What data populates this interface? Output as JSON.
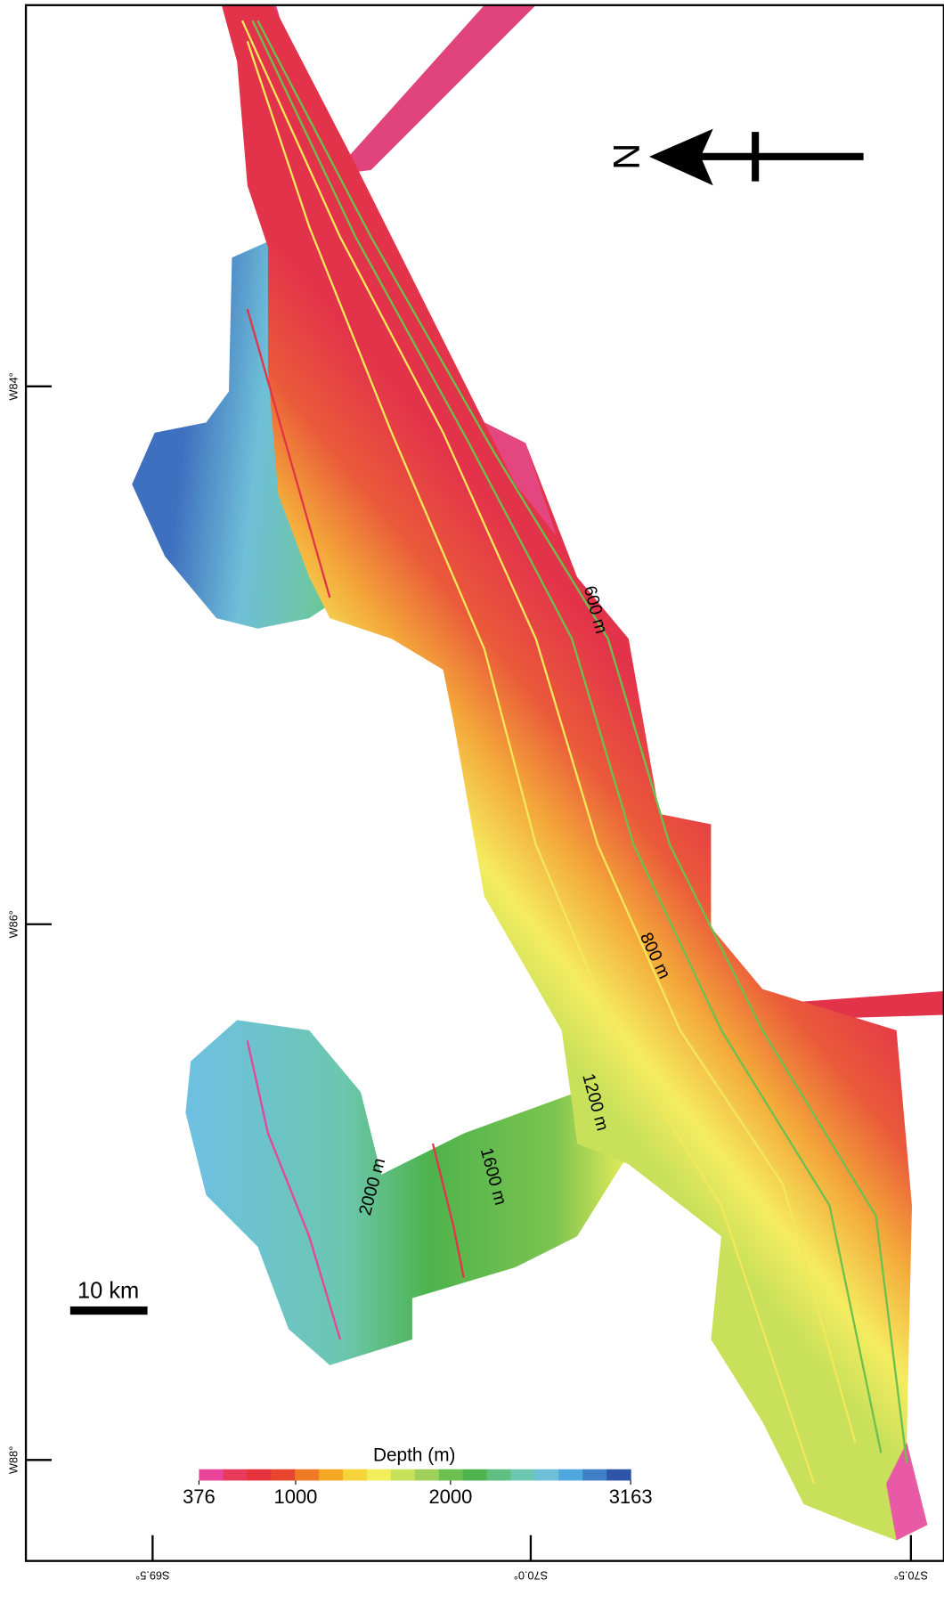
{
  "map": {
    "north_label": "N",
    "scale_bar": "10 km",
    "left_axis": [
      "W84°",
      "W86°",
      "W88°"
    ],
    "bottom_axis": [
      "S69.5°",
      "S70.0°",
      "S70.5°"
    ],
    "contour_labels": [
      "600 m",
      "800 m",
      "1200 m",
      "1600 m",
      "2000 m"
    ],
    "colorbar": {
      "title": "Depth (m)",
      "min": 376,
      "max": 3163,
      "ticks": [
        376,
        1000,
        2000,
        3163
      ],
      "colors": [
        "#e8449a",
        "#e83a5a",
        "#e5323c",
        "#e8452e",
        "#ef7a26",
        "#f5a623",
        "#f7d33a",
        "#f2ee5a",
        "#c9e05a",
        "#9ed05a",
        "#6cc04f",
        "#4db34c",
        "#5fbf80",
        "#6cc7b0",
        "#6ebfd8",
        "#4fa8dd",
        "#3f7fc6",
        "#2f55a8"
      ]
    }
  }
}
